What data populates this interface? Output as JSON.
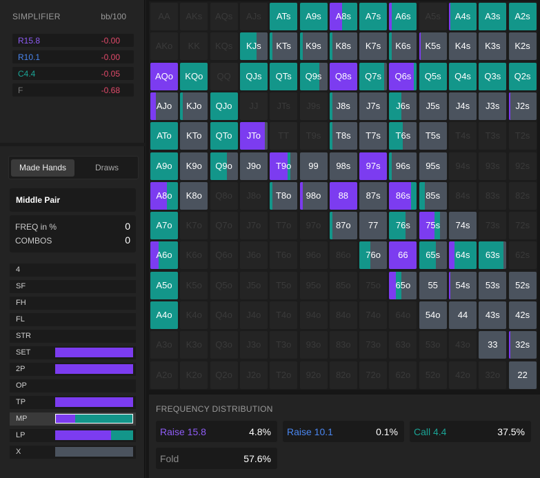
{
  "colors": {
    "raise_big": "#7c3cf0",
    "raise_small": "#3b7cf0",
    "call": "#13968a",
    "fold": "#4b535e",
    "negative": "#e24a6a"
  },
  "simplifier": {
    "title": "SIMPLIFIER",
    "unit": "bb/100",
    "rows": [
      {
        "label": "R15.8",
        "value": "-0.00",
        "color": "#8e5cf5"
      },
      {
        "label": "R10.1",
        "value": "-0.00",
        "color": "#4a86f0"
      },
      {
        "label": "C4.4",
        "value": "-0.05",
        "color": "#1aa395"
      },
      {
        "label": "F",
        "value": "-0.68",
        "color": "#777777"
      }
    ]
  },
  "filters": {
    "tabs": [
      "Made Hands",
      "Draws"
    ],
    "active_tab": "Made Hands",
    "selected_category": "Middle Pair",
    "stats": [
      {
        "label": "FREQ in %",
        "value": "0"
      },
      {
        "label": "COMBOS",
        "value": "0"
      }
    ],
    "categories": [
      {
        "label": "4",
        "bar": null
      },
      {
        "label": "SF",
        "bar": null
      },
      {
        "label": "FH",
        "bar": null
      },
      {
        "label": "FL",
        "bar": null
      },
      {
        "label": "STR",
        "bar": null
      },
      {
        "label": "SET",
        "bar": [
          1,
          0,
          0,
          0
        ]
      },
      {
        "label": "2P",
        "bar": [
          1,
          0,
          0,
          0
        ]
      },
      {
        "label": "OP",
        "bar": null
      },
      {
        "label": "TP",
        "bar": [
          1,
          0,
          0,
          0
        ]
      },
      {
        "label": "MP",
        "bar": [
          0.25,
          0,
          0.75,
          0
        ],
        "selected": true
      },
      {
        "label": "LP",
        "bar": [
          0.72,
          0,
          0.28,
          0
        ]
      },
      {
        "label": "X",
        "bar": [
          0,
          0,
          0,
          1
        ]
      }
    ]
  },
  "grid": {
    "ranks": [
      "A",
      "K",
      "Q",
      "J",
      "T",
      "9",
      "8",
      "7",
      "6",
      "5",
      "4",
      "3",
      "2"
    ],
    "hands": [
      [
        "AA",
        "AKs",
        "AQs",
        "AJs",
        "ATs",
        "A9s",
        "A8s",
        "A7s",
        "A6s",
        "A5s",
        "A4s",
        "A3s",
        "A2s"
      ],
      [
        "AKo",
        "KK",
        "KQs",
        "KJs",
        "KTs",
        "K9s",
        "K8s",
        "K7s",
        "K6s",
        "K5s",
        "K4s",
        "K3s",
        "K2s"
      ],
      [
        "AQo",
        "KQo",
        "QQ",
        "QJs",
        "QTs",
        "Q9s",
        "Q8s",
        "Q7s",
        "Q6s",
        "Q5s",
        "Q4s",
        "Q3s",
        "Q2s"
      ],
      [
        "AJo",
        "KJo",
        "QJo",
        "JJ",
        "JTs",
        "J9s",
        "J8s",
        "J7s",
        "J6s",
        "J5s",
        "J4s",
        "J3s",
        "J2s"
      ],
      [
        "ATo",
        "KTo",
        "QTo",
        "JTo",
        "TT",
        "T9s",
        "T8s",
        "T7s",
        "T6s",
        "T5s",
        "T4s",
        "T3s",
        "T2s"
      ],
      [
        "A9o",
        "K9o",
        "Q9o",
        "J9o",
        "T9o",
        "99",
        "98s",
        "97s",
        "96s",
        "95s",
        "94s",
        "93s",
        "92s"
      ],
      [
        "A8o",
        "K8o",
        "Q8o",
        "J8o",
        "T8o",
        "98o",
        "88",
        "87s",
        "86s",
        "85s",
        "84s",
        "83s",
        "82s"
      ],
      [
        "A7o",
        "K7o",
        "Q7o",
        "J7o",
        "T7o",
        "97o",
        "87o",
        "77",
        "76s",
        "75s",
        "74s",
        "73s",
        "72s"
      ],
      [
        "A6o",
        "K6o",
        "Q6o",
        "J6o",
        "T6o",
        "96o",
        "86o",
        "76o",
        "66",
        "65s",
        "64s",
        "63s",
        "62s"
      ],
      [
        "A5o",
        "K5o",
        "Q5o",
        "J5o",
        "T5o",
        "95o",
        "85o",
        "75o",
        "65o",
        "55",
        "54s",
        "53s",
        "52s"
      ],
      [
        "A4o",
        "K4o",
        "Q4o",
        "J4o",
        "T4o",
        "94o",
        "84o",
        "74o",
        "64o",
        "54o",
        "44",
        "43s",
        "42s"
      ],
      [
        "A3o",
        "K3o",
        "Q3o",
        "J3o",
        "T3o",
        "93o",
        "83o",
        "73o",
        "63o",
        "53o",
        "43o",
        "33",
        "32s"
      ],
      [
        "A2o",
        "K2o",
        "Q2o",
        "J2o",
        "T2o",
        "92o",
        "82o",
        "72o",
        "62o",
        "52o",
        "42o",
        "32o",
        "22"
      ]
    ],
    "freqs": {
      "ATs": [
        0,
        0,
        1,
        0
      ],
      "A9s": [
        0,
        0,
        1,
        0
      ],
      "A8s": [
        0.45,
        0,
        0.55,
        0
      ],
      "A7s": [
        0,
        0,
        1,
        0
      ],
      "A6s": [
        0.1,
        0,
        0.9,
        0
      ],
      "A4s": [
        0.05,
        0,
        0.95,
        0
      ],
      "A3s": [
        0,
        0,
        1,
        0
      ],
      "A2s": [
        0,
        0,
        1,
        0
      ],
      "KJs": [
        0,
        0,
        0.6,
        0.4
      ],
      "KTs": [
        0,
        0,
        0.1,
        0.9
      ],
      "K9s": [
        0,
        0,
        0.1,
        0.9
      ],
      "K8s": [
        0,
        0,
        0.1,
        0.9
      ],
      "K7s": [
        0,
        0,
        0,
        1
      ],
      "K6s": [
        0,
        0,
        0.1,
        0.9
      ],
      "K5s": [
        0.05,
        0,
        0,
        0.95
      ],
      "K4s": [
        0,
        0,
        0,
        1
      ],
      "K3s": [
        0,
        0,
        0,
        1
      ],
      "K2s": [
        0,
        0,
        0,
        1
      ],
      "AQo": [
        1,
        0,
        0,
        0
      ],
      "KQo": [
        0,
        0,
        1,
        0
      ],
      "QJs": [
        0,
        0,
        1,
        0
      ],
      "QTs": [
        0,
        0,
        1,
        0
      ],
      "Q9s": [
        0,
        0,
        0.7,
        0.3
      ],
      "Q8s": [
        1,
        0,
        0,
        0
      ],
      "Q7s": [
        0,
        0,
        0.9,
        0.1
      ],
      "Q6s": [
        0.9,
        0,
        0.1,
        0
      ],
      "Q5s": [
        0,
        0,
        1,
        0
      ],
      "Q4s": [
        0,
        0,
        1,
        0
      ],
      "Q3s": [
        0,
        0,
        1,
        0
      ],
      "Q2s": [
        0,
        0,
        1,
        0
      ],
      "AJo": [
        0.2,
        0,
        0,
        0.8
      ],
      "KJo": [
        0,
        0,
        0.1,
        0.9
      ],
      "QJo": [
        0,
        0,
        1,
        0
      ],
      "J8s": [
        0,
        0,
        0.1,
        0.9
      ],
      "J7s": [
        0,
        0,
        0,
        1
      ],
      "J6s": [
        0,
        0,
        0.45,
        0.55
      ],
      "J5s": [
        0,
        0,
        0,
        1
      ],
      "J4s": [
        0,
        0,
        0,
        1
      ],
      "J3s": [
        0,
        0,
        0,
        1
      ],
      "J2s": [
        0.05,
        0,
        0,
        0.95
      ],
      "ATo": [
        0,
        0,
        1,
        0
      ],
      "KTo": [
        0,
        0,
        0,
        1
      ],
      "QTo": [
        0,
        0,
        1,
        0
      ],
      "JTo": [
        0.9,
        0,
        0,
        0.1
      ],
      "T8s": [
        0,
        0,
        0.1,
        0.9
      ],
      "T7s": [
        0,
        0,
        0,
        1
      ],
      "T6s": [
        0,
        0,
        0.5,
        0.5
      ],
      "T5s": [
        0,
        0,
        0,
        1
      ],
      "A9o": [
        0,
        0,
        1,
        0
      ],
      "K9o": [
        0,
        0,
        0,
        1
      ],
      "Q9o": [
        0,
        0,
        0.6,
        0.4
      ],
      "J9o": [
        0,
        0,
        0,
        1
      ],
      "T9o": [
        0.65,
        0,
        0.1,
        0.25
      ],
      "99": [
        0,
        0,
        0,
        1
      ],
      "98s": [
        0,
        0,
        0,
        1
      ],
      "97s": [
        1,
        0,
        0,
        0
      ],
      "96s": [
        0,
        0,
        0.1,
        0.9
      ],
      "95s": [
        0,
        0,
        0,
        1
      ],
      "A8o": [
        0.6,
        0,
        0.4,
        0
      ],
      "K8o": [
        0,
        0,
        0,
        1
      ],
      "T8o": [
        0,
        0,
        0.1,
        0.9
      ],
      "98o": [
        0.1,
        0,
        0,
        0.9
      ],
      "88": [
        1,
        0,
        0,
        0
      ],
      "87s": [
        0,
        0,
        0,
        1
      ],
      "86s": [
        0.8,
        0,
        0.2,
        0
      ],
      "85s": [
        0,
        0,
        0.2,
        0.8
      ],
      "A7o": [
        0,
        0,
        1,
        0
      ],
      "87o": [
        0,
        0,
        0.1,
        0.9
      ],
      "77": [
        0,
        0,
        0,
        1
      ],
      "76s": [
        0,
        0,
        0.6,
        0.4
      ],
      "75s": [
        0.55,
        0,
        0.2,
        0.25
      ],
      "74s": [
        0,
        0,
        0,
        1
      ],
      "A6o": [
        0.3,
        0,
        0.7,
        0
      ],
      "76o": [
        0,
        0,
        0.4,
        0.6
      ],
      "66": [
        1,
        0,
        0,
        0
      ],
      "65s": [
        0,
        0,
        0.6,
        0.4
      ],
      "64s": [
        0.2,
        0,
        0.8,
        0
      ],
      "63s": [
        0,
        0,
        0.9,
        0.1
      ],
      "A5o": [
        0,
        0,
        1,
        0
      ],
      "65o": [
        0.25,
        0,
        0.2,
        0.55
      ],
      "55": [
        0,
        0,
        0,
        1
      ],
      "54s": [
        0.05,
        0,
        0,
        0.95
      ],
      "53s": [
        0,
        0,
        0,
        1
      ],
      "52s": [
        0,
        0,
        0,
        1
      ],
      "A4o": [
        0,
        0,
        1,
        0
      ],
      "54o": [
        0,
        0,
        0,
        1
      ],
      "44": [
        0,
        0,
        0,
        1
      ],
      "43s": [
        0,
        0,
        0,
        1
      ],
      "42s": [
        0,
        0,
        0,
        1
      ],
      "33": [
        0,
        0,
        0,
        1
      ],
      "32s": [
        0.05,
        0,
        0,
        0.95
      ],
      "22": [
        0,
        0,
        0,
        1
      ]
    },
    "empty_filled": [
      "A5s",
      "QQ",
      "JJ",
      "TT",
      "J9s",
      "T9s"
    ]
  },
  "frequency": {
    "title": "FREQUENCY DISTRIBUTION",
    "items": [
      {
        "label": "Raise 15.8",
        "value": "4.8%",
        "color": "#8e5cf5"
      },
      {
        "label": "Raise 10.1",
        "value": "0.1%",
        "color": "#4a86f0"
      },
      {
        "label": "Call 4.4",
        "value": "37.5%",
        "color": "#1aa395"
      },
      {
        "label": "Fold",
        "value": "57.6%",
        "color": "#8a8a8a"
      }
    ]
  }
}
